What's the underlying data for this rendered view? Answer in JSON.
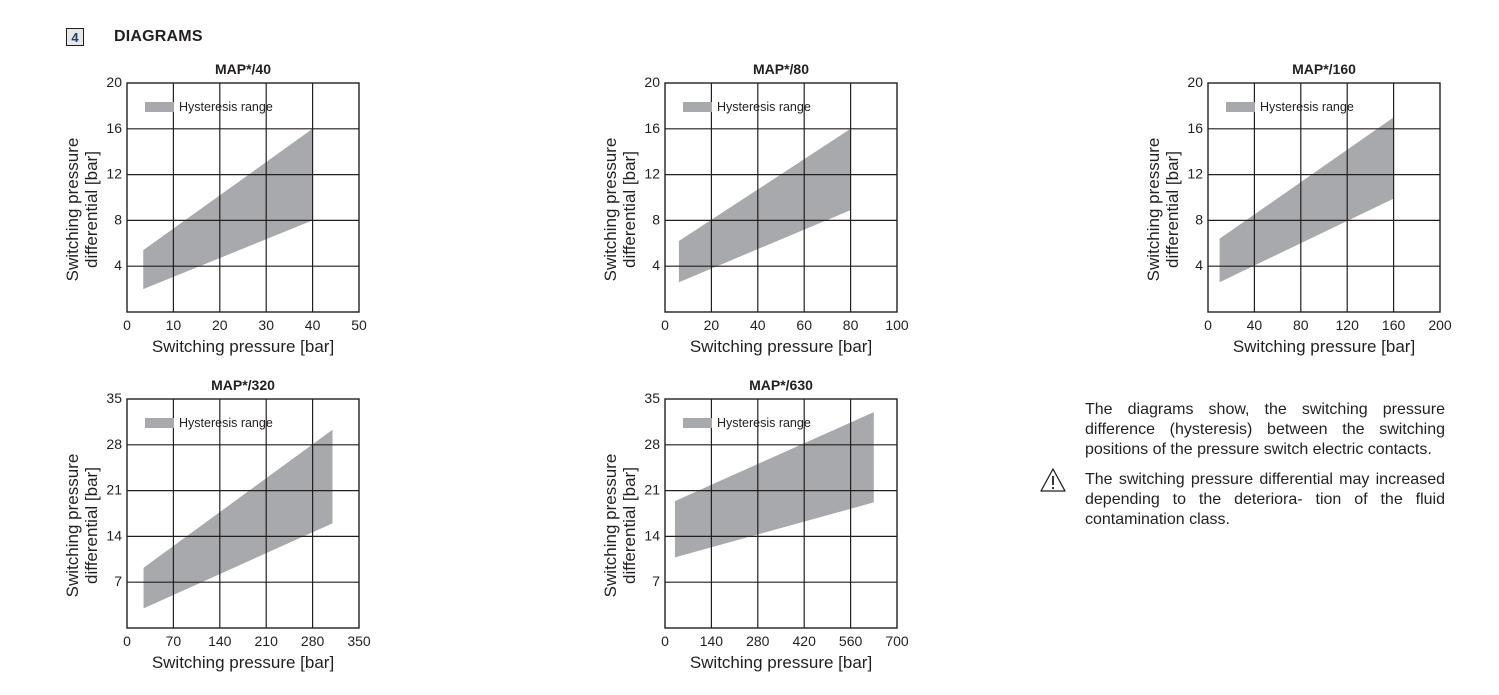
{
  "section": {
    "number": "4",
    "title": "DIAGRAMS"
  },
  "legend_label": "Hysteresis range",
  "colors": {
    "band": "#a7a9ac",
    "ink": "#231f20",
    "badge_text": "#1f3f6e",
    "badge_bg": "#e6e7e8"
  },
  "chart_data": [
    {
      "type": "area",
      "title": "MAP*/40",
      "xlabel": "Switching pressure [bar]",
      "ylabel": [
        "Switching pressure",
        "differential [bar]"
      ],
      "xlim": [
        0,
        50
      ],
      "ylim": [
        0,
        20
      ],
      "xticks": [
        0,
        10,
        20,
        30,
        40,
        50
      ],
      "yticks": [
        4,
        8,
        12,
        16,
        20
      ],
      "grid": true,
      "legend": "top-left",
      "series": [
        {
          "name": "Hysteresis range",
          "x": [
            3.5,
            40
          ],
          "upper": [
            5.4,
            16
          ],
          "lower": [
            2,
            8
          ]
        }
      ]
    },
    {
      "type": "area",
      "title": "MAP*/80",
      "xlabel": "Switching pressure [bar]",
      "ylabel": [
        "Switching pressure",
        "differential [bar]"
      ],
      "xlim": [
        0,
        100
      ],
      "ylim": [
        0,
        20
      ],
      "xticks": [
        0,
        20,
        40,
        60,
        80,
        100
      ],
      "yticks": [
        4,
        8,
        12,
        16,
        20
      ],
      "grid": true,
      "legend": "top-left",
      "series": [
        {
          "name": "Hysteresis range",
          "x": [
            6,
            80
          ],
          "upper": [
            6.2,
            16
          ],
          "lower": [
            2.6,
            8.9
          ]
        }
      ]
    },
    {
      "type": "area",
      "title": "MAP*/160",
      "xlabel": "Switching pressure [bar]",
      "ylabel": [
        "Switching pressure",
        "differential [bar]"
      ],
      "xlim": [
        0,
        200
      ],
      "ylim": [
        0,
        20
      ],
      "xticks": [
        0,
        40,
        80,
        120,
        160,
        200
      ],
      "yticks": [
        4,
        8,
        12,
        16,
        20
      ],
      "grid": true,
      "legend": "top-left",
      "series": [
        {
          "name": "Hysteresis range",
          "x": [
            10,
            160
          ],
          "upper": [
            6.4,
            17
          ],
          "lower": [
            2.6,
            9.9
          ]
        }
      ]
    },
    {
      "type": "area",
      "title": "MAP*/320",
      "xlabel": "Switching pressure [bar]",
      "ylabel": [
        "Switching pressure",
        "differential [bar]"
      ],
      "xlim": [
        0,
        350
      ],
      "ylim": [
        0,
        35
      ],
      "xticks": [
        0,
        70,
        140,
        210,
        280,
        350
      ],
      "yticks": [
        7,
        14,
        21,
        28,
        35
      ],
      "grid": true,
      "legend": "top-left",
      "series": [
        {
          "name": "Hysteresis range",
          "x": [
            25,
            310
          ],
          "upper": [
            9.2,
            30.3
          ],
          "lower": [
            3,
            16
          ]
        }
      ]
    },
    {
      "type": "area",
      "title": "MAP*/630",
      "xlabel": "Switching pressure [bar]",
      "ylabel": [
        "Switching pressure",
        "differential [bar]"
      ],
      "xlim": [
        0,
        700
      ],
      "ylim": [
        0,
        35
      ],
      "xticks": [
        0,
        140,
        280,
        420,
        560,
        700
      ],
      "yticks": [
        7,
        14,
        21,
        28,
        35
      ],
      "grid": true,
      "legend": "top-left",
      "series": [
        {
          "name": "Hysteresis range",
          "x": [
            30,
            630
          ],
          "upper": [
            19.4,
            33
          ],
          "lower": [
            10.8,
            19.2
          ]
        }
      ]
    }
  ],
  "notes": {
    "description": "The diagrams show, the switching pressure difference (hysteresis) between the switching positions of the pressure switch electric contacts.",
    "warning": "The switching pressure differential may increased depending to the deteriora- tion of the fluid contamination class."
  }
}
